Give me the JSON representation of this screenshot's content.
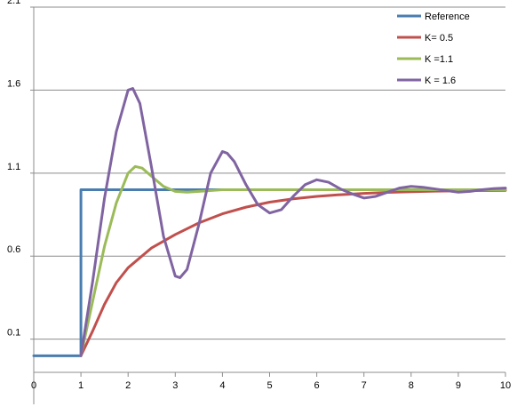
{
  "chart_data": {
    "type": "line",
    "title": "",
    "xlabel": "",
    "ylabel": "",
    "xlim": [
      0,
      10
    ],
    "ylim": [
      -0.1,
      2.1
    ],
    "x_ticks": [
      0,
      1,
      2,
      3,
      4,
      5,
      6,
      7,
      8,
      9,
      10
    ],
    "x_tick_labels": [
      "0",
      "1",
      "2",
      "3",
      "4",
      "5",
      "6",
      "7",
      "8",
      "9",
      "10"
    ],
    "y_gridlines": [
      0.1,
      0.6,
      1.1,
      1.6,
      2.1
    ],
    "y_tick_labels": [
      "0.1",
      "0.6",
      "1.1",
      "1.6",
      "2.1"
    ],
    "grid": "horizontal",
    "legend_position": "top-right",
    "series": [
      {
        "name": "Reference",
        "color": "#4A7DAF",
        "shape": "step",
        "x": [
          0,
          1,
          1,
          10
        ],
        "y": [
          0,
          0,
          1,
          1
        ]
      },
      {
        "name": "K= 0.5",
        "color": "#C0504D",
        "x": [
          1,
          1.25,
          1.5,
          1.75,
          2,
          2.5,
          3,
          3.5,
          4,
          4.5,
          5,
          5.5,
          6,
          6.5,
          7,
          7.5,
          8,
          8.5,
          9,
          9.5,
          10
        ],
        "y": [
          0,
          0.15,
          0.31,
          0.44,
          0.53,
          0.65,
          0.73,
          0.8,
          0.855,
          0.895,
          0.925,
          0.945,
          0.96,
          0.97,
          0.978,
          0.984,
          0.988,
          0.991,
          0.993,
          0.995,
          0.996
        ]
      },
      {
        "name": "K =1.1",
        "color": "#9BBB59",
        "x": [
          1,
          1.25,
          1.5,
          1.75,
          2,
          2.15,
          2.3,
          2.5,
          2.75,
          3,
          3.25,
          3.5,
          4,
          5,
          6,
          7,
          8,
          9,
          10
        ],
        "y": [
          0,
          0.33,
          0.66,
          0.92,
          1.1,
          1.14,
          1.13,
          1.08,
          1.02,
          0.99,
          0.985,
          0.99,
          1.0,
          1.0,
          1.0,
          1.0,
          1.0,
          1.0,
          1.0
        ]
      },
      {
        "name": "K = 1.6",
        "color": "#8064A2",
        "x": [
          1,
          1.25,
          1.5,
          1.75,
          2,
          2.1,
          2.25,
          2.5,
          2.75,
          3,
          3.1,
          3.25,
          3.5,
          3.75,
          4,
          4.1,
          4.25,
          4.5,
          4.75,
          5,
          5.25,
          5.5,
          5.75,
          6,
          6.25,
          6.5,
          6.75,
          7,
          7.25,
          7.5,
          7.75,
          8,
          8.25,
          8.5,
          8.75,
          9,
          9.25,
          9.5,
          9.75,
          10
        ],
        "y": [
          0,
          0.45,
          0.95,
          1.35,
          1.6,
          1.61,
          1.52,
          1.13,
          0.72,
          0.48,
          0.47,
          0.52,
          0.79,
          1.1,
          1.23,
          1.22,
          1.17,
          1.03,
          0.91,
          0.86,
          0.88,
          0.96,
          1.03,
          1.06,
          1.045,
          1.005,
          0.975,
          0.95,
          0.96,
          0.985,
          1.01,
          1.02,
          1.015,
          1.005,
          0.995,
          0.985,
          0.99,
          1.0,
          1.007,
          1.01
        ]
      }
    ]
  }
}
